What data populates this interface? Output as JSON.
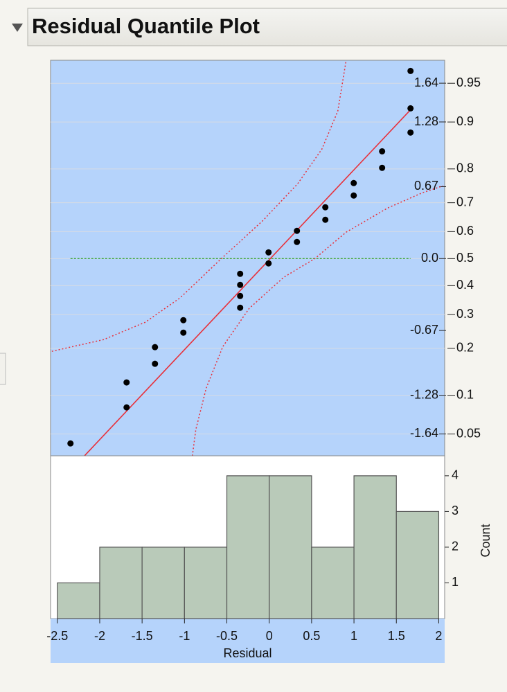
{
  "header": {
    "title": "Residual Quantile Plot"
  },
  "chart_data": [
    {
      "type": "scatter",
      "x": [
        -2.345,
        -1.683,
        -1.683,
        -1.348,
        -1.348,
        -1.013,
        -1.013,
        -0.343,
        -0.343,
        -0.343,
        -0.343,
        -0.008,
        -0.008,
        0.327,
        0.327,
        0.662,
        0.662,
        0.997,
        0.997,
        1.332,
        1.332,
        1.667,
        1.667,
        1.667
      ],
      "values": [
        -1.734,
        -1.396,
        -1.162,
        -0.987,
        -0.831,
        -0.695,
        -0.578,
        -0.461,
        -0.351,
        -0.247,
        -0.143,
        -0.045,
        0.058,
        0.156,
        0.26,
        0.364,
        0.481,
        0.591,
        0.708,
        0.851,
        1.006,
        1.182,
        1.409,
        1.76
      ],
      "color": "#000000",
      "fit_line": {
        "x": [
          -2.181,
          1.683
        ],
        "y": [
          -1.851,
          1.409
        ],
        "color": "#e8303a"
      },
      "confidence_band": {
        "color": "#e8303a",
        "upper": {
          "x": [
            -2.565,
            -1.953,
            -1.462,
            -1.054,
            -0.564,
            -0.074,
            0.335,
            0.621,
            0.809,
            0.907
          ],
          "y": [
            -0.87,
            -0.76,
            -0.597,
            -0.37,
            0,
            0.357,
            0.701,
            1.026,
            1.383,
            1.857
          ]
        },
        "lower": {
          "x": [
            -0.907,
            -0.866,
            -0.743,
            -0.547,
            -0.237,
            0.172,
            0.539,
            0.907,
            1.397,
            1.806,
            2.051
          ],
          "y": [
            -1.851,
            -1.604,
            -1.214,
            -0.825,
            -0.468,
            -0.175,
            0,
            0.247,
            0.474,
            0.617,
            0.682
          ]
        }
      },
      "reference_line": {
        "y": 0,
        "color": "#2ca02c"
      },
      "background": "#b5d3fb",
      "xlim": [
        -2.58,
        2.07
      ],
      "ylim": [
        -1.85,
        1.86
      ],
      "yticks": [
        {
          "value": -1.6449,
          "label": "-1.64"
        },
        {
          "value": -1.2816,
          "label": "-1.28"
        },
        {
          "value": -0.6745,
          "label": "-0.67"
        },
        {
          "value": 0,
          "label": "0.0"
        },
        {
          "value": 0.6745,
          "label": "0.67"
        },
        {
          "value": 1.2816,
          "label": "1.28"
        },
        {
          "value": 1.6449,
          "label": "1.64"
        }
      ],
      "y2scale": "normal-probability",
      "y2lim": [
        0.0322,
        0.9686
      ],
      "y2ticks": [
        0.05,
        0.1,
        0.2,
        0.3,
        0.4,
        0.5,
        0.6,
        0.7,
        0.8,
        0.9,
        0.95
      ],
      "grid": true
    },
    {
      "type": "histogram",
      "bins": [
        -2.5,
        -2,
        -1.5,
        -1,
        -0.5,
        0,
        0.5,
        1,
        1.5,
        2
      ],
      "values": [
        1,
        2,
        2,
        2,
        4,
        4,
        2,
        4,
        3
      ],
      "color": "#b9cab9",
      "x_label": "Residual",
      "y_label": "Count",
      "xlim": [
        -2.58,
        2.07
      ],
      "xticks": [
        -2.5,
        -2,
        -1.5,
        -1,
        -0.5,
        0,
        0.5,
        1,
        1.5,
        2
      ],
      "ylim": [
        0,
        4.56
      ],
      "yticks": [
        1,
        2,
        3,
        4
      ]
    }
  ]
}
